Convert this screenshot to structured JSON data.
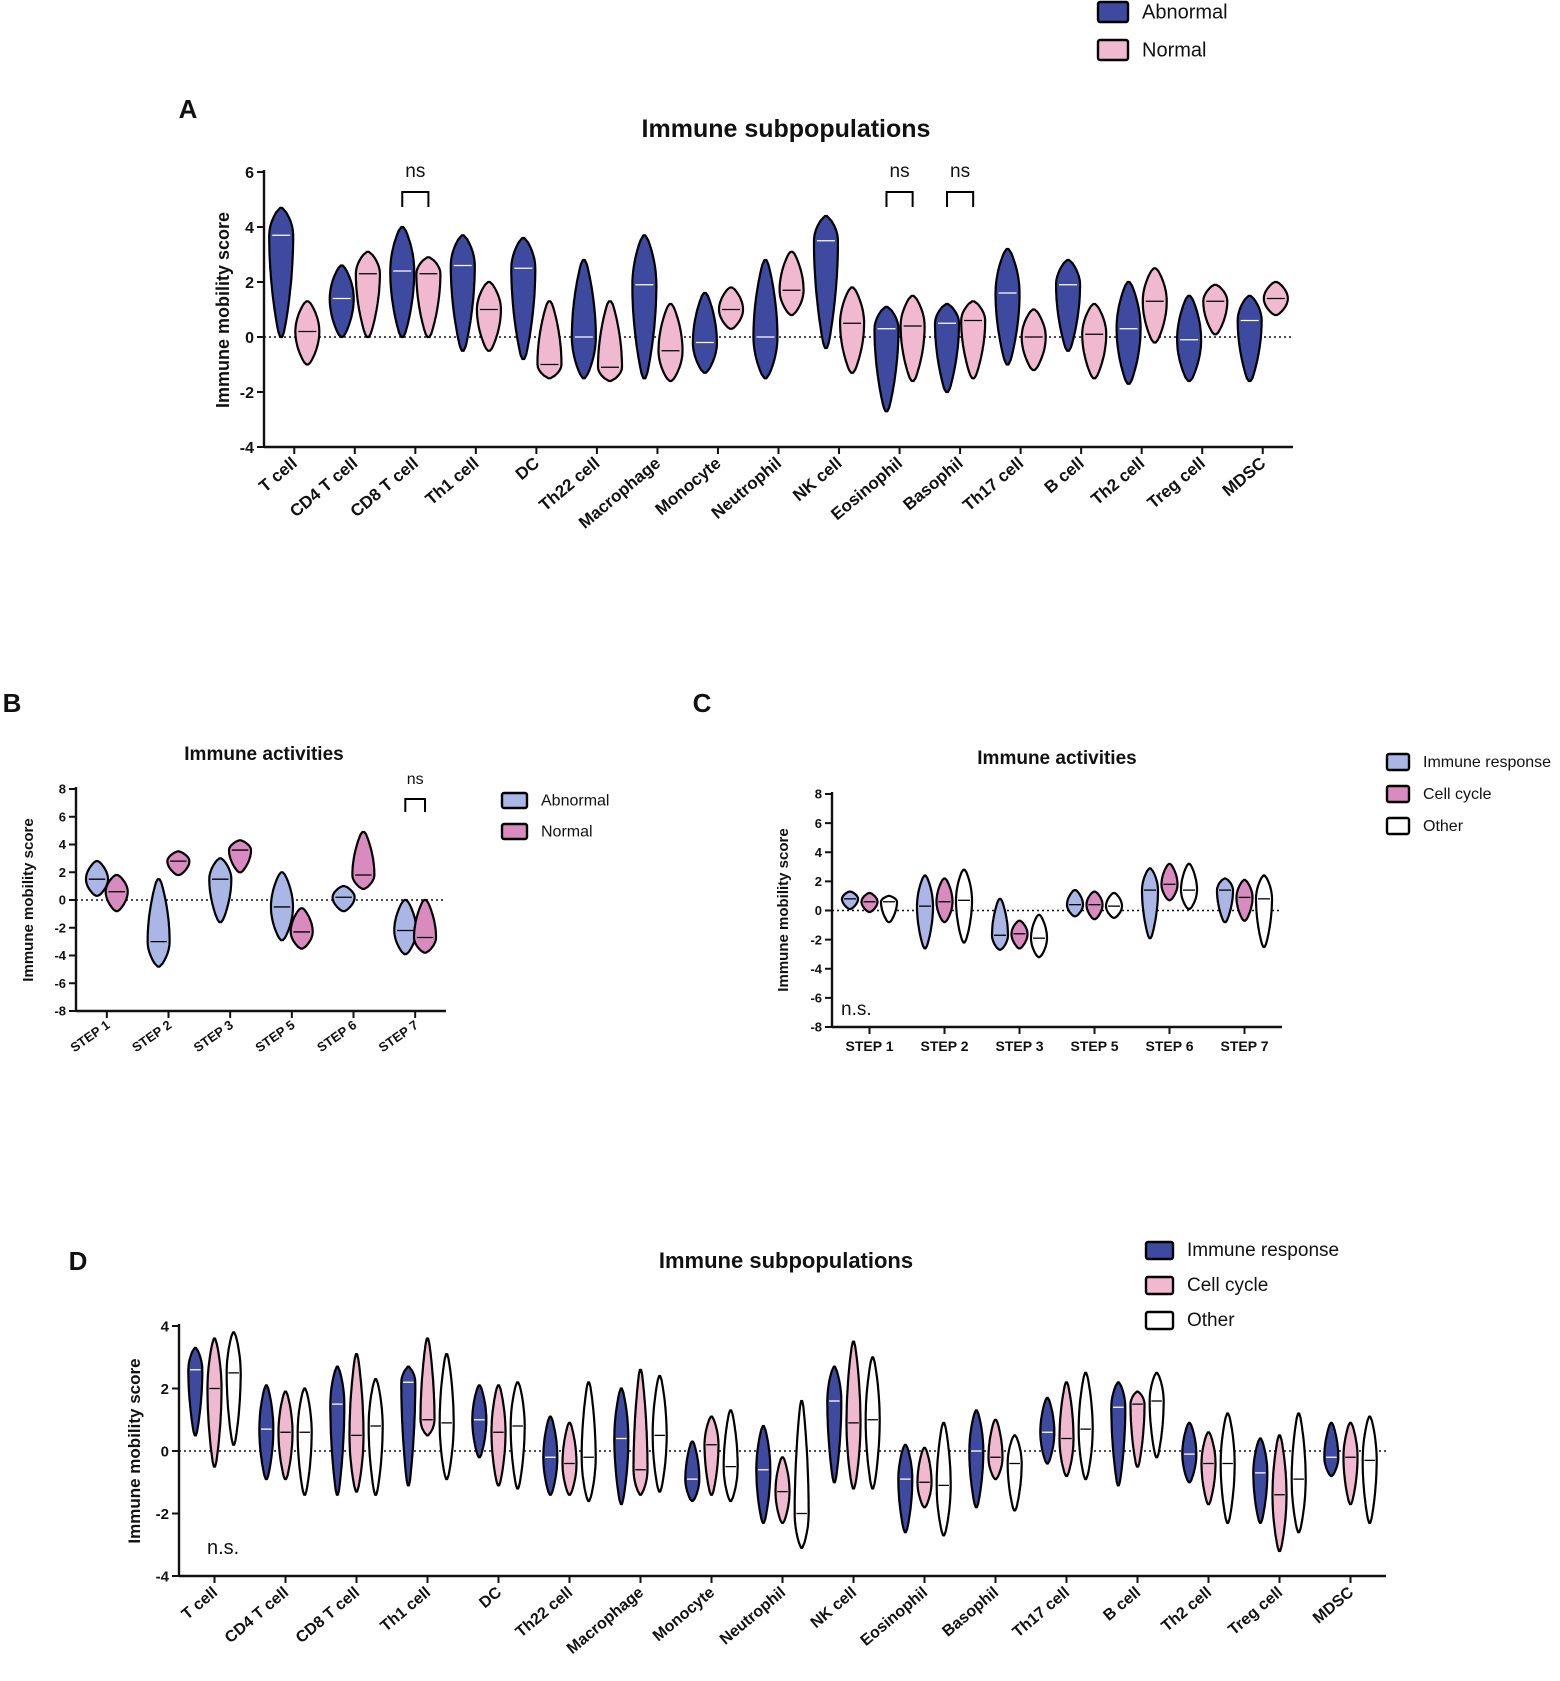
{
  "colors": {
    "abnormal_dark": "#3d4aa0",
    "normal_pink": "#f1b9cf",
    "abnormal_light": "#a9b6e6",
    "normal_mauve": "#d98bc0",
    "other_white": "#ffffff",
    "axis": "#111111"
  },
  "chart_data": [
    {
      "panel": "A",
      "type": "violin",
      "title": "Immune subpopulations",
      "xlabel": "",
      "ylabel": "Immune mobility score",
      "ylim": [
        -4,
        6
      ],
      "yticks": [
        "-4",
        "-2",
        "0",
        "2",
        "4",
        "6"
      ],
      "reference_line": 0,
      "legend": {
        "position": "top-right",
        "entries": [
          "Abnormal",
          "Normal"
        ]
      },
      "categories": [
        "T cell",
        "CD4 T cell",
        "CD8 T cell",
        "Th1 cell",
        "DC",
        "Th22 cell",
        "Macrophage",
        "Monocyte",
        "Neutrophil",
        "NK cell",
        "Eosinophil",
        "Basophil",
        "Th17 cell",
        "B cell",
        "Th2 cell",
        "Treg cell",
        "MDSC"
      ],
      "series": [
        {
          "name": "Abnormal",
          "color_key": "abnormal_dark",
          "median": [
            3.7,
            1.4,
            2.4,
            2.6,
            2.5,
            0.0,
            1.9,
            -0.2,
            0.0,
            3.5,
            0.3,
            0.5,
            1.6,
            1.9,
            0.3,
            -0.1,
            0.6
          ],
          "min": [
            0.0,
            0.0,
            0.0,
            -0.5,
            -0.8,
            -1.5,
            -1.5,
            -1.3,
            -1.5,
            -0.4,
            -2.7,
            -2.0,
            -1.0,
            -0.5,
            -1.7,
            -1.6,
            -1.6
          ],
          "max": [
            4.7,
            2.6,
            4.0,
            3.7,
            3.6,
            2.8,
            3.7,
            1.6,
            2.8,
            4.4,
            1.1,
            1.2,
            3.2,
            2.8,
            2.0,
            1.5,
            1.5
          ]
        },
        {
          "name": "Normal",
          "color_key": "normal_pink",
          "median": [
            0.2,
            2.3,
            2.3,
            1.0,
            -1.0,
            -1.1,
            -0.5,
            1.0,
            1.7,
            0.5,
            0.4,
            0.6,
            0.0,
            0.1,
            1.3,
            1.3,
            1.4
          ],
          "min": [
            -1.0,
            0.0,
            0.0,
            -0.5,
            -1.5,
            -1.6,
            -1.6,
            0.3,
            0.8,
            -1.3,
            -1.6,
            -1.5,
            -1.2,
            -1.5,
            -0.2,
            0.1,
            0.8
          ],
          "max": [
            1.3,
            3.1,
            2.9,
            2.0,
            1.3,
            1.3,
            1.2,
            1.8,
            3.1,
            1.8,
            1.5,
            1.3,
            1.0,
            1.2,
            2.5,
            1.9,
            2.0
          ]
        }
      ],
      "annotations": [
        {
          "category": "CD8 T cell",
          "text": "ns"
        },
        {
          "category": "Eosinophil",
          "text": "ns"
        },
        {
          "category": "Basophil",
          "text": "ns"
        }
      ]
    },
    {
      "panel": "B",
      "type": "violin",
      "title": "Immune activities",
      "xlabel": "",
      "ylabel": "Immune mobility score",
      "ylim": [
        -8,
        8
      ],
      "yticks": [
        "-8",
        "-6",
        "-4",
        "-2",
        "0",
        "2",
        "4",
        "6",
        "8"
      ],
      "reference_line": 0,
      "legend": {
        "position": "right",
        "entries": [
          "Abnormal",
          "Normal"
        ]
      },
      "categories": [
        "STEP 1",
        "STEP 2",
        "STEP 3",
        "STEP 5",
        "STEP 6",
        "STEP 7"
      ],
      "series": [
        {
          "name": "Abnormal",
          "color_key": "abnormal_light",
          "median": [
            1.5,
            -3.0,
            1.5,
            -0.5,
            0.2,
            -2.2
          ],
          "min": [
            0.3,
            -4.8,
            -1.6,
            -2.9,
            -0.8,
            -3.9
          ],
          "max": [
            2.8,
            1.5,
            3.0,
            2.0,
            1.0,
            0.0
          ]
        },
        {
          "name": "Normal",
          "color_key": "normal_mauve",
          "median": [
            0.6,
            2.8,
            3.6,
            -2.3,
            1.8,
            -2.7
          ],
          "min": [
            -0.8,
            1.8,
            2.0,
            -3.5,
            0.8,
            -3.8
          ],
          "max": [
            1.8,
            3.5,
            4.3,
            -0.6,
            4.9,
            0.0
          ]
        }
      ],
      "annotations": [
        {
          "category": "STEP 7",
          "text": "ns"
        }
      ]
    },
    {
      "panel": "C",
      "type": "violin",
      "title": "Immune activities",
      "xlabel": "",
      "ylabel": "Immune mobility score",
      "ylim": [
        -8,
        8
      ],
      "yticks": [
        "-8",
        "-6",
        "-4",
        "-2",
        "0",
        "2",
        "4",
        "6",
        "8"
      ],
      "reference_line": 0,
      "legend": {
        "position": "right",
        "entries": [
          "Immune response",
          "Cell cycle",
          "Other"
        ]
      },
      "categories": [
        "STEP 1",
        "STEP 2",
        "STEP 3",
        "STEP 5",
        "STEP 6",
        "STEP 7"
      ],
      "series": [
        {
          "name": "Immune response",
          "color_key": "abnormal_light",
          "median": [
            0.8,
            0.3,
            -1.7,
            0.4,
            1.4,
            1.4
          ],
          "min": [
            0.1,
            -2.6,
            -2.7,
            -0.4,
            -1.9,
            -0.8
          ],
          "max": [
            1.3,
            2.4,
            0.8,
            1.4,
            2.9,
            2.2
          ]
        },
        {
          "name": "Cell cycle",
          "color_key": "normal_mauve",
          "median": [
            0.6,
            0.6,
            -1.6,
            0.4,
            1.8,
            0.9
          ],
          "min": [
            -0.1,
            -0.8,
            -2.6,
            -0.6,
            0.7,
            -0.7
          ],
          "max": [
            1.2,
            2.2,
            -0.7,
            1.3,
            3.2,
            2.1
          ]
        },
        {
          "name": "Other",
          "color_key": "other_white",
          "median": [
            0.6,
            0.7,
            -1.9,
            0.3,
            1.4,
            0.8
          ],
          "min": [
            -0.8,
            -2.2,
            -3.2,
            -0.5,
            0.1,
            -2.5
          ],
          "max": [
            1.0,
            2.8,
            -0.3,
            1.2,
            3.2,
            2.4
          ]
        }
      ],
      "annotations": [
        {
          "text": "n.s."
        }
      ]
    },
    {
      "panel": "D",
      "type": "violin",
      "title": "Immune subpopulations",
      "xlabel": "",
      "ylabel": "Immune mobility score",
      "ylim": [
        -4,
        4
      ],
      "yticks": [
        "-4",
        "-2",
        "0",
        "2",
        "4"
      ],
      "reference_line": 0,
      "legend": {
        "position": "top-right",
        "entries": [
          "Immune response",
          "Cell cycle",
          "Other"
        ]
      },
      "categories": [
        "T cell",
        "CD4 T cell",
        "CD8 T cell",
        "Th1 cell",
        "DC",
        "Th22 cell",
        "Macrophage",
        "Monocyte",
        "Neutrophil",
        "NK cell",
        "Eosinophil",
        "Basophil",
        "Th17 cell",
        "B cell",
        "Th2 cell",
        "Treg cell",
        "MDSC"
      ],
      "series": [
        {
          "name": "Immune response",
          "color_key": "abnormal_dark",
          "median": [
            2.6,
            0.7,
            1.5,
            2.2,
            1.0,
            -0.2,
            0.4,
            -0.9,
            -0.6,
            1.6,
            -0.9,
            0.0,
            0.6,
            1.4,
            -0.1,
            -0.7,
            -0.2
          ],
          "min": [
            0.5,
            -0.9,
            -1.4,
            -1.1,
            -0.2,
            -1.4,
            -1.7,
            -1.6,
            -2.3,
            -1.0,
            -2.6,
            -1.8,
            -0.4,
            -1.1,
            -1.0,
            -2.3,
            -0.8
          ],
          "max": [
            3.3,
            2.1,
            2.7,
            2.7,
            2.1,
            1.1,
            2.0,
            0.3,
            0.8,
            2.7,
            0.2,
            1.3,
            1.7,
            2.2,
            0.9,
            0.4,
            0.9
          ]
        },
        {
          "name": "Cell cycle",
          "color_key": "normal_pink",
          "median": [
            2.0,
            0.6,
            0.5,
            1.0,
            0.6,
            -0.4,
            -0.6,
            0.2,
            -1.3,
            0.9,
            -1.0,
            -0.2,
            0.4,
            1.5,
            -0.4,
            -1.4,
            -0.2
          ],
          "min": [
            -0.5,
            -0.9,
            -1.3,
            0.5,
            -1.1,
            -1.4,
            -1.4,
            -1.4,
            -2.3,
            -1.2,
            -1.8,
            -0.9,
            -0.8,
            -0.5,
            -1.7,
            -3.2,
            -1.7
          ],
          "max": [
            3.6,
            1.9,
            3.1,
            3.6,
            2.1,
            0.9,
            2.6,
            1.1,
            -0.2,
            3.5,
            0.1,
            1.0,
            2.2,
            1.9,
            0.6,
            0.5,
            0.9
          ]
        },
        {
          "name": "Other",
          "color_key": "other_white",
          "median": [
            2.5,
            0.6,
            0.8,
            0.9,
            0.8,
            -0.2,
            0.5,
            -0.5,
            -2.0,
            1.0,
            -1.1,
            -0.4,
            0.7,
            1.6,
            -0.4,
            -0.9,
            -0.3
          ],
          "min": [
            0.2,
            -1.4,
            -1.4,
            -0.9,
            -1.2,
            -1.6,
            -1.3,
            -1.6,
            -3.1,
            -1.2,
            -2.7,
            -1.9,
            -0.9,
            -0.2,
            -2.3,
            -2.6,
            -2.3
          ],
          "max": [
            3.8,
            2.0,
            2.3,
            3.1,
            2.2,
            2.2,
            2.4,
            1.3,
            1.6,
            3.0,
            0.9,
            0.5,
            2.5,
            2.5,
            1.2,
            1.2,
            1.1
          ]
        }
      ],
      "annotations": [
        {
          "text": "n.s."
        }
      ]
    }
  ],
  "panel_labels": [
    "A",
    "B",
    "C",
    "D"
  ]
}
